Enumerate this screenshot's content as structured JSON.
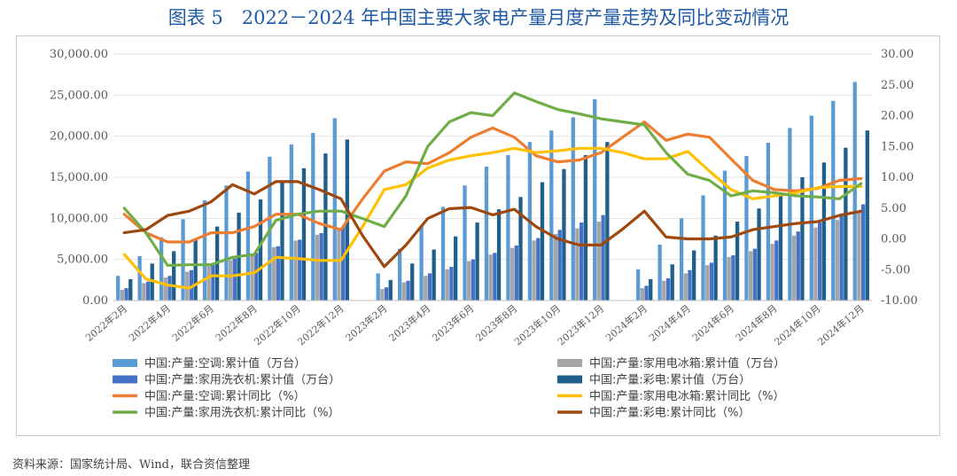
{
  "title": "图表 5　2022－2024 年中国主要大家电产量月度产量走势及同比变动情况",
  "source": "资料来源：国家统计局、Wind，联合资信整理",
  "chart_data": {
    "type": "bar+line",
    "categories": [
      "2022年2月",
      "2022年3月",
      "2022年4月",
      "2022年5月",
      "2022年6月",
      "2022年7月",
      "2022年8月",
      "2022年9月",
      "2022年10月",
      "2022年11月",
      "2022年12月",
      "2023年1月",
      "2023年2月",
      "2023年3月",
      "2023年4月",
      "2023年5月",
      "2023年6月",
      "2023年7月",
      "2023年8月",
      "2023年9月",
      "2023年10月",
      "2023年11月",
      "2023年12月",
      "2024年1月",
      "2024年2月",
      "2024年3月",
      "2024年4月",
      "2024年5月",
      "2024年6月",
      "2024年7月",
      "2024年8月",
      "2024年9月",
      "2024年10月",
      "2024年11月",
      "2024年12月"
    ],
    "x_tick_labels": [
      "2022年2月",
      "2022年4月",
      "2022年6月",
      "2022年8月",
      "2022年10月",
      "2022年12月",
      "2023年2月",
      "2023年4月",
      "2023年6月",
      "2023年8月",
      "2023年10月",
      "2023年12月",
      "2024年2月",
      "2024年4月",
      "2024年6月",
      "2024年8月",
      "2024年10月",
      "2024年12月"
    ],
    "y_left": {
      "min": 0,
      "max": 30000,
      "ticks": [
        "0.00",
        "5,000.00",
        "10,000.00",
        "15,000.00",
        "20,000.00",
        "25,000.00",
        "30,000.00"
      ]
    },
    "y_right": {
      "min": -10,
      "max": 30,
      "ticks": [
        "-10.00",
        "-5.00",
        "0.00",
        "5.00",
        "10.00",
        "15.00",
        "20.00",
        "25.00",
        "30.00"
      ]
    },
    "bar_series": [
      {
        "name": "中国:产量:空调:累计值（万台）",
        "color": "#5b9bd5",
        "values": [
          3000,
          5400,
          7700,
          9900,
          12200,
          14000,
          15700,
          17500,
          19000,
          20400,
          22200,
          null,
          3300,
          6300,
          9100,
          11400,
          14000,
          16300,
          17700,
          19300,
          20700,
          22300,
          24500,
          null,
          3800,
          6800,
          10000,
          12800,
          15800,
          17600,
          19200,
          21000,
          22500,
          24300,
          26600
        ]
      },
      {
        "name": "中国:产量:家用电冰箱:累计值（万台）",
        "color": "#a5a5a5",
        "values": [
          1300,
          2100,
          2800,
          3500,
          4200,
          4900,
          5700,
          6500,
          7300,
          8000,
          8700,
          null,
          1400,
          2200,
          3000,
          3800,
          4800,
          5600,
          6400,
          7300,
          8100,
          8800,
          9600,
          null,
          1500,
          2400,
          3300,
          4300,
          5300,
          6000,
          6900,
          7900,
          8900,
          9800,
          10700
        ]
      },
      {
        "name": "中国:产量:家用洗衣机:累计值（万台）",
        "color": "#4472c4",
        "values": [
          1500,
          2300,
          3000,
          3700,
          4400,
          5100,
          5800,
          6600,
          7400,
          8200,
          9000,
          null,
          1600,
          2400,
          3300,
          4100,
          5000,
          5800,
          6700,
          7600,
          8600,
          9500,
          10400,
          null,
          1800,
          2700,
          3700,
          4600,
          5500,
          6300,
          7300,
          8400,
          9500,
          10600,
          11700
        ]
      },
      {
        "name": "中国:产量:彩电:累计值（万台）",
        "color": "#1f5f8b",
        "values": [
          2600,
          4500,
          6000,
          7500,
          9000,
          10700,
          12300,
          14400,
          16100,
          17900,
          19600,
          null,
          2500,
          4500,
          6200,
          7800,
          9500,
          11100,
          12600,
          14400,
          16000,
          17700,
          19300,
          null,
          2600,
          4400,
          6100,
          7900,
          9600,
          11200,
          12900,
          15000,
          16800,
          18600,
          20700
        ]
      }
    ],
    "line_series": [
      {
        "name": "中国:产量:空调:累计同比（%）",
        "color": "#ed7d31",
        "values": [
          4,
          1,
          -0.5,
          -0.5,
          1,
          1,
          2,
          4,
          4,
          2.5,
          1.5,
          6.5,
          11,
          12.5,
          12.2,
          14,
          16.5,
          18,
          16.5,
          13.5,
          12.5,
          12.8,
          14,
          16.5,
          19,
          16,
          17,
          16.5,
          13,
          9.5,
          8,
          7.8,
          8.2,
          9.5,
          9.8
        ]
      },
      {
        "name": "中国:产量:家用电冰箱:累计同比（%）",
        "color": "#ffc000",
        "values": [
          -2.5,
          -6.5,
          -7.5,
          -8,
          -6,
          -6,
          -5.5,
          -3,
          -3.2,
          -3.5,
          -3.5,
          2,
          8,
          8.8,
          11.5,
          12.8,
          13.5,
          14,
          14.7,
          14,
          14.3,
          14.7,
          14.7,
          14,
          13,
          13,
          14.2,
          11,
          8,
          6.5,
          7,
          7.5,
          8.3,
          8.5,
          8.5
        ]
      },
      {
        "name": "中国:产量:家用洗衣机:累计同比（%）",
        "color": "#70ad47",
        "values": [
          5,
          1,
          -4.3,
          -4.2,
          -4.2,
          -3,
          -2.5,
          3,
          4,
          4.5,
          4.5,
          3.3,
          2,
          7,
          15,
          19,
          20.5,
          20,
          23.7,
          22.3,
          21,
          20.3,
          19.5,
          19,
          18.5,
          14,
          10.5,
          9.5,
          7,
          7.8,
          7.5,
          7,
          6.8,
          6.5,
          9
        ]
      },
      {
        "name": "中国:产量:彩电:累计同比（%）",
        "color": "#9e480e",
        "values": [
          1,
          1.5,
          3.8,
          4.5,
          6,
          8.8,
          7.3,
          9.3,
          9.3,
          8,
          6.5,
          0.5,
          -4.5,
          -1,
          3.3,
          4.9,
          5.1,
          3.9,
          4.8,
          2,
          0,
          -1,
          -1,
          1.6,
          4.5,
          0.3,
          0,
          0,
          0.3,
          1.5,
          2,
          2.5,
          2.8,
          3.8,
          4.5
        ]
      }
    ],
    "legend_layout": "two-column-below-chart"
  }
}
